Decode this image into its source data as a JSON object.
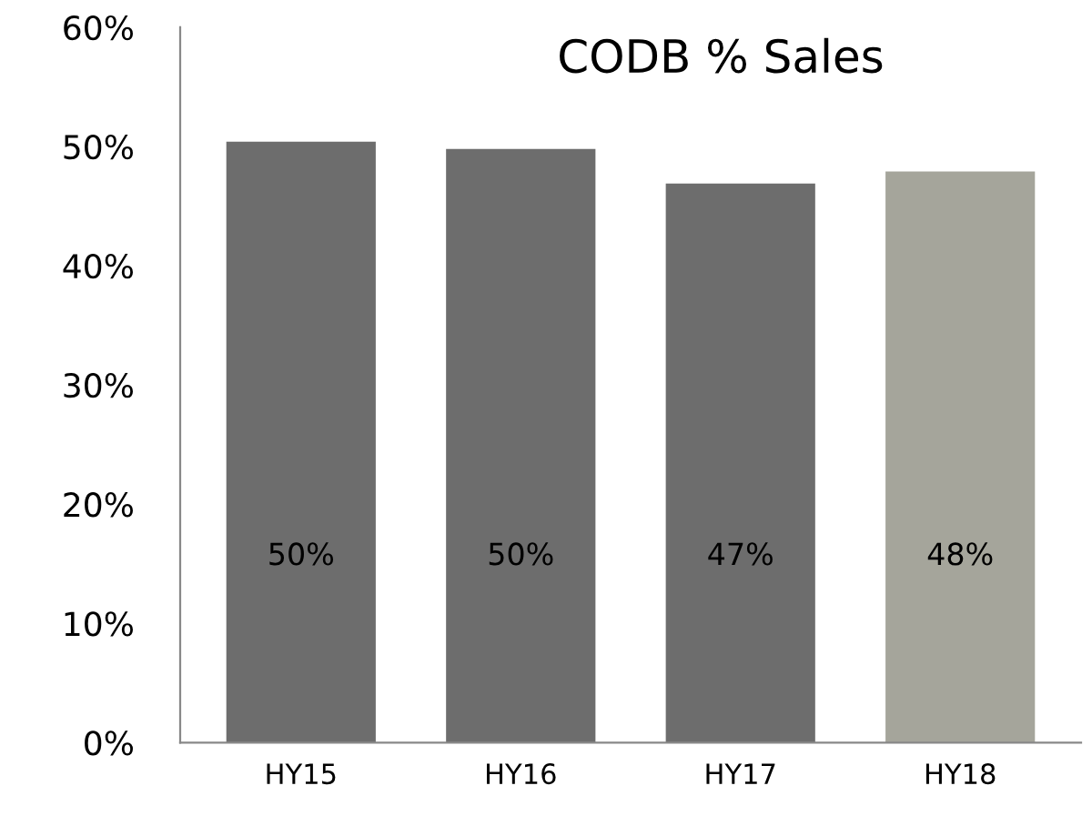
{
  "chart_data": {
    "type": "bar",
    "title": "CODB % Sales",
    "categories": [
      "HY15",
      "HY16",
      "HY17",
      "HY18"
    ],
    "values": [
      50.4,
      49.8,
      46.9,
      47.9
    ],
    "colors": [
      "#6d6d6d",
      "#6d6d6d",
      "#6d6d6d",
      "#a5a59b"
    ],
    "value_labels": [
      "50%",
      "50%",
      "47%",
      "48%"
    ],
    "ylim": [
      0,
      60
    ],
    "yticks": [
      {
        "value": 0,
        "label": "0%"
      },
      {
        "value": 10,
        "label": "10%"
      },
      {
        "value": 20,
        "label": "20%"
      },
      {
        "value": 30,
        "label": "30%"
      },
      {
        "value": 40,
        "label": "40%"
      },
      {
        "value": 50,
        "label": "50%"
      },
      {
        "value": 60,
        "label": "60%"
      }
    ],
    "grid": false,
    "legend": false
  }
}
